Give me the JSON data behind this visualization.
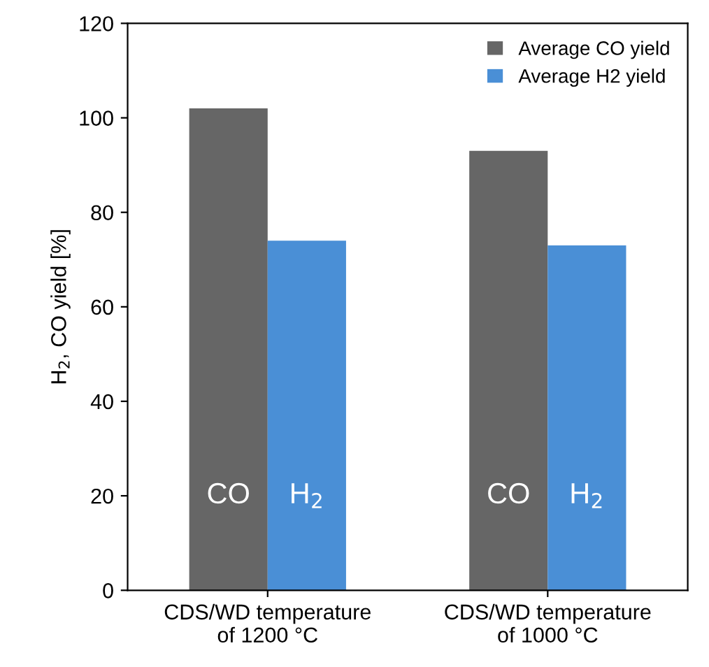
{
  "chart_data": {
    "type": "bar",
    "ylabel": "H$_{2}$, CO yield [%]",
    "categories": [
      "CDS/WD temperature\nof 1200 °C",
      "CDS/WD temperature\nof 1000 °C"
    ],
    "series": [
      {
        "name": "Average CO yield",
        "color": "#666666",
        "values": [
          102,
          93
        ]
      },
      {
        "name": "Average H2 yield",
        "color": "#4a8fd6",
        "values": [
          74,
          73
        ]
      }
    ],
    "ylim": [
      0,
      120
    ],
    "yticks": [
      0,
      20,
      40,
      60,
      80,
      100,
      120
    ],
    "grid": false,
    "legend": "top right",
    "annotations": [
      {
        "text": "CO",
        "x": "CDS/WD temperature\nof 1200 °C",
        "y": 20
      },
      {
        "text": "H$_{2}$",
        "x": "CDS/WD temperature\nof 1200 °C",
        "y": 20
      },
      {
        "text": "CO",
        "x": "CDS/WD temperature\nof 1000 °C",
        "y": 20
      },
      {
        "text": "H$_{2}$",
        "x": "CDS/WD temperature\nof 1000 °C",
        "y": 20
      }
    ]
  }
}
